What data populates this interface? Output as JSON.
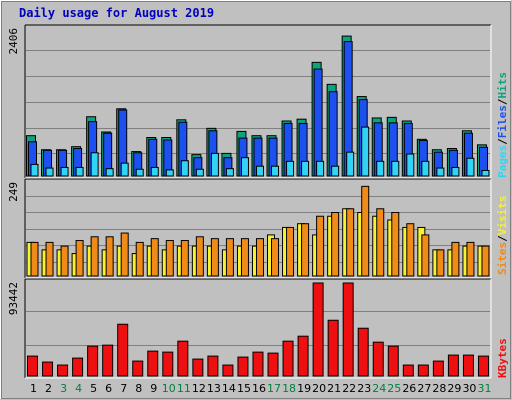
{
  "title": "Daily usage for August 2019",
  "colors": {
    "background": "#c0c0c0",
    "plot_bg": "#c0c0c0",
    "title": "#0000c0",
    "hits": "#0ea37a",
    "files": "#1d50f0",
    "pages": "#31d4f4",
    "visits": "#f7f130",
    "sites": "#f08a18",
    "kbytes": "#ee1010",
    "weekend_label": "#008040",
    "grid": "#808080"
  },
  "chart_data": [
    {
      "type": "bar",
      "name": "hits_files_pages",
      "ymax_label": "2406",
      "ylim": [
        0,
        2406
      ],
      "legend": [
        "Pages",
        "/",
        "Files",
        "/",
        "Hits"
      ],
      "categories": [
        "1",
        "2",
        "3",
        "4",
        "5",
        "6",
        "7",
        "8",
        "9",
        "10",
        "11",
        "12",
        "13",
        "14",
        "15",
        "16",
        "17",
        "18",
        "19",
        "20",
        "21",
        "22",
        "23",
        "24",
        "25",
        "26",
        "27",
        "28",
        "29",
        "30",
        "31"
      ],
      "weekend_days": [
        "3",
        "4",
        "10",
        "11",
        "17",
        "18",
        "24",
        "25",
        "31"
      ],
      "series": [
        {
          "name": "Hits",
          "values": [
            660,
            430,
            430,
            480,
            970,
            720,
            1100,
            400,
            630,
            630,
            920,
            350,
            780,
            370,
            730,
            660,
            660,
            900,
            930,
            1860,
            1500,
            2290,
            1300,
            950,
            960,
            900,
            600,
            430,
            450,
            740,
            510
          ]
        },
        {
          "name": "Files",
          "values": [
            560,
            420,
            420,
            450,
            890,
            700,
            1080,
            380,
            600,
            590,
            880,
            300,
            740,
            300,
            620,
            620,
            620,
            860,
            860,
            1750,
            1380,
            2200,
            1250,
            870,
            870,
            860,
            580,
            390,
            420,
            700,
            470
          ]
        },
        {
          "name": "Pages",
          "values": [
            190,
            130,
            140,
            140,
            380,
            120,
            210,
            110,
            140,
            100,
            250,
            110,
            370,
            120,
            300,
            160,
            160,
            240,
            240,
            240,
            160,
            390,
            800,
            240,
            240,
            360,
            240,
            130,
            140,
            290,
            90
          ]
        }
      ]
    },
    {
      "type": "bar",
      "name": "sites_visits",
      "ymax_label": "249",
      "ylim": [
        0,
        249
      ],
      "legend": [
        "Sites",
        "/",
        "Visits"
      ],
      "categories": [
        "1",
        "2",
        "3",
        "4",
        "5",
        "6",
        "7",
        "8",
        "9",
        "10",
        "11",
        "12",
        "13",
        "14",
        "15",
        "16",
        "17",
        "18",
        "19",
        "20",
        "21",
        "22",
        "23",
        "24",
        "25",
        "26",
        "27",
        "28",
        "29",
        "30",
        "31"
      ],
      "series": [
        {
          "name": "Visits",
          "values": [
            90,
            70,
            70,
            60,
            80,
            70,
            80,
            60,
            80,
            70,
            80,
            80,
            80,
            70,
            80,
            80,
            110,
            130,
            140,
            110,
            160,
            180,
            170,
            160,
            150,
            130,
            130,
            70,
            70,
            80,
            80
          ]
        },
        {
          "name": "Sites",
          "values": [
            90,
            90,
            80,
            95,
            105,
            105,
            115,
            90,
            100,
            95,
            95,
            105,
            100,
            100,
            100,
            100,
            100,
            130,
            140,
            160,
            170,
            180,
            240,
            180,
            170,
            140,
            110,
            70,
            90,
            90,
            80
          ]
        }
      ]
    },
    {
      "type": "bar",
      "name": "kbytes",
      "ymax_label": "93442",
      "ylim": [
        0,
        93442
      ],
      "legend": [
        "KBytes"
      ],
      "categories": [
        "1",
        "2",
        "3",
        "4",
        "5",
        "6",
        "7",
        "8",
        "9",
        "10",
        "11",
        "12",
        "13",
        "14",
        "15",
        "16",
        "17",
        "18",
        "19",
        "20",
        "21",
        "22",
        "23",
        "24",
        "25",
        "26",
        "27",
        "28",
        "29",
        "30",
        "31"
      ],
      "series": [
        {
          "name": "KBytes",
          "values": [
            20000,
            14000,
            11000,
            18000,
            30000,
            31000,
            52000,
            15000,
            25000,
            24000,
            35000,
            17000,
            20000,
            11000,
            19000,
            24000,
            23000,
            35000,
            40000,
            93442,
            56000,
            93442,
            48000,
            34000,
            30000,
            11000,
            11000,
            15000,
            21000,
            21000,
            20000
          ]
        }
      ]
    }
  ]
}
